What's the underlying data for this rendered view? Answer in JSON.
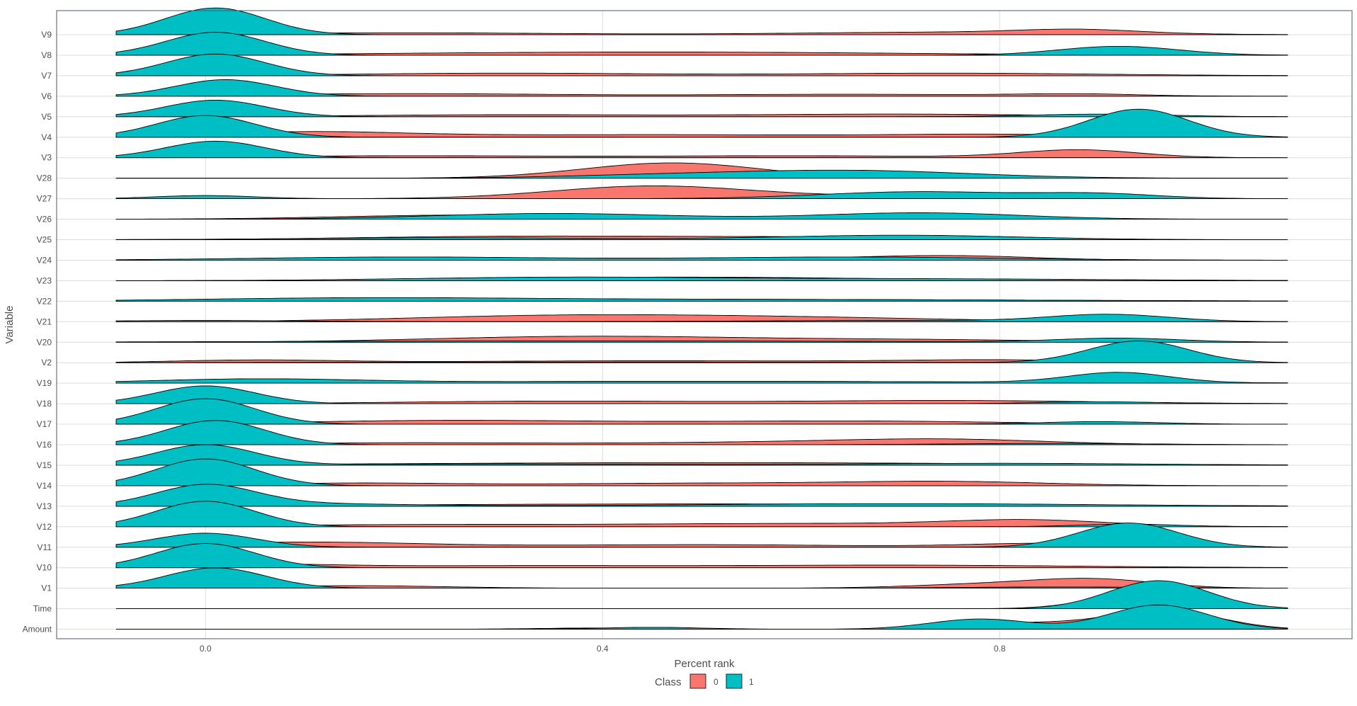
{
  "chart_data": {
    "type": "ridgeline",
    "xlabel": "Percent rank",
    "ylabel": "Variable",
    "xlim": [
      -0.15,
      1.155
    ],
    "x_ticks": [
      0.0,
      0.4,
      0.8
    ],
    "x_tick_labels": [
      "0.0",
      "0.4",
      "0.8"
    ],
    "grid": true,
    "legend": {
      "title": "Class",
      "position": "bottom",
      "items": [
        {
          "label": "0",
          "color": "#F8766D"
        },
        {
          "label": "1",
          "color": "#00BFC4"
        }
      ]
    },
    "colors": {
      "class0": "#F8766D",
      "class1": "#00BFC4",
      "panel_border": "#4a5a6a",
      "grid": "#dcdcdc"
    },
    "variables": [
      "Amount",
      "Time",
      "V1",
      "V10",
      "V11",
      "V12",
      "V13",
      "V14",
      "V15",
      "V16",
      "V17",
      "V18",
      "V19",
      "V2",
      "V20",
      "V21",
      "V22",
      "V23",
      "V24",
      "V25",
      "V26",
      "V27",
      "V28",
      "V3",
      "V4",
      "V5",
      "V6",
      "V7",
      "V8",
      "V9"
    ],
    "series": [
      {
        "variable": "Amount",
        "range": [
          -0.09,
          1.09
        ],
        "class0": [
          [
            0.4,
            0.1,
            0.06
          ],
          [
            0.83,
            0.5,
            0.07
          ],
          [
            0.96,
            1.3,
            0.05
          ],
          [
            1.02,
            0.25,
            0.04
          ]
        ],
        "class1": [
          [
            0.45,
            0.15,
            0.05
          ],
          [
            0.78,
            0.8,
            0.05
          ],
          [
            0.96,
            1.9,
            0.05
          ]
        ]
      },
      {
        "variable": "Time",
        "range": [
          -0.09,
          1.09
        ],
        "class0": [
          [
            0.94,
            1.1,
            0.05
          ],
          [
            0.99,
            0.4,
            0.04
          ]
        ],
        "class1": [
          [
            0.96,
            2.2,
            0.05
          ]
        ]
      },
      {
        "variable": "V1",
        "range": [
          -0.09,
          1.09
        ],
        "class0": [
          [
            0.15,
            0.2,
            0.09
          ],
          [
            0.8,
            0.35,
            0.08
          ],
          [
            0.9,
            0.6,
            0.06
          ]
        ],
        "class1": [
          [
            0.01,
            1.6,
            0.05
          ],
          [
            0.86,
            0.1,
            0.1
          ]
        ]
      },
      {
        "variable": "V10",
        "range": [
          -0.09,
          1.09
        ],
        "class0": [
          [
            0.05,
            0.25,
            0.08
          ],
          [
            0.3,
            0.15,
            0.15
          ],
          [
            0.7,
            0.2,
            0.18
          ]
        ],
        "class1": [
          [
            0.0,
            1.9,
            0.05
          ]
        ]
      },
      {
        "variable": "V11",
        "range": [
          -0.09,
          1.09
        ],
        "class0": [
          [
            0.1,
            0.4,
            0.12
          ],
          [
            0.5,
            0.2,
            0.15
          ],
          [
            0.85,
            0.3,
            0.08
          ]
        ],
        "class1": [
          [
            0.0,
            1.1,
            0.05
          ],
          [
            0.93,
            1.9,
            0.05
          ]
        ]
      },
      {
        "variable": "V12",
        "range": [
          -0.09,
          1.09
        ],
        "class0": [
          [
            0.2,
            0.15,
            0.15
          ],
          [
            0.6,
            0.25,
            0.18
          ],
          [
            0.83,
            0.45,
            0.08
          ]
        ],
        "class1": [
          [
            0.0,
            2.0,
            0.05
          ],
          [
            0.93,
            0.2,
            0.05
          ]
        ]
      },
      {
        "variable": "V13",
        "range": [
          -0.09,
          1.09
        ],
        "class0": [
          [
            0.5,
            0.18,
            0.3
          ]
        ],
        "class1": [
          [
            0.0,
            1.6,
            0.05
          ],
          [
            0.1,
            0.2,
            0.1
          ],
          [
            0.7,
            0.2,
            0.2
          ]
        ]
      },
      {
        "variable": "V14",
        "range": [
          -0.09,
          1.09
        ],
        "class0": [
          [
            0.15,
            0.2,
            0.1
          ],
          [
            0.5,
            0.2,
            0.15
          ],
          [
            0.75,
            0.3,
            0.1
          ]
        ],
        "class1": [
          [
            0.0,
            2.1,
            0.05
          ]
        ]
      },
      {
        "variable": "V15",
        "range": [
          -0.09,
          1.09
        ],
        "class0": [
          [
            0.5,
            0.2,
            0.3
          ]
        ],
        "class1": [
          [
            0.0,
            1.6,
            0.05
          ],
          [
            0.3,
            0.1,
            0.15
          ],
          [
            0.8,
            0.15,
            0.15
          ]
        ]
      },
      {
        "variable": "V16",
        "range": [
          -0.09,
          1.09
        ],
        "class0": [
          [
            0.2,
            0.15,
            0.12
          ],
          [
            0.58,
            0.2,
            0.15
          ],
          [
            0.75,
            0.35,
            0.1
          ]
        ],
        "class1": [
          [
            0.01,
            1.9,
            0.05
          ],
          [
            0.85,
            0.1,
            0.1
          ]
        ]
      },
      {
        "variable": "V17",
        "range": [
          -0.09,
          1.09
        ],
        "class0": [
          [
            0.25,
            0.3,
            0.15
          ],
          [
            0.65,
            0.25,
            0.15
          ]
        ],
        "class1": [
          [
            0.0,
            2.0,
            0.05
          ],
          [
            0.9,
            0.2,
            0.06
          ]
        ]
      },
      {
        "variable": "V18",
        "range": [
          -0.09,
          1.09
        ],
        "class0": [
          [
            0.35,
            0.2,
            0.15
          ],
          [
            0.75,
            0.25,
            0.15
          ]
        ],
        "class1": [
          [
            0.0,
            1.4,
            0.05
          ],
          [
            0.9,
            0.15,
            0.06
          ]
        ]
      },
      {
        "variable": "V19",
        "range": [
          -0.09,
          1.09
        ],
        "class0": [
          [
            0.5,
            0.15,
            0.3
          ]
        ],
        "class1": [
          [
            0.05,
            0.3,
            0.1
          ],
          [
            0.5,
            0.15,
            0.3
          ],
          [
            0.92,
            0.8,
            0.05
          ]
        ]
      },
      {
        "variable": "V2",
        "range": [
          -0.09,
          1.09
        ],
        "class0": [
          [
            0.05,
            0.2,
            0.08
          ],
          [
            0.45,
            0.15,
            0.2
          ],
          [
            0.8,
            0.2,
            0.1
          ]
        ],
        "class1": [
          [
            0.94,
            1.7,
            0.05
          ],
          [
            0.4,
            0.05,
            0.3
          ]
        ]
      },
      {
        "variable": "V20",
        "range": [
          -0.09,
          1.09
        ],
        "class0": [
          [
            0.38,
            0.45,
            0.15
          ],
          [
            0.7,
            0.2,
            0.15
          ]
        ],
        "class1": [
          [
            0.4,
            0.1,
            0.3
          ],
          [
            0.92,
            0.3,
            0.06
          ]
        ]
      },
      {
        "variable": "V21",
        "range": [
          -0.09,
          1.09
        ],
        "class0": [
          [
            0.35,
            0.45,
            0.15
          ],
          [
            0.6,
            0.3,
            0.15
          ]
        ],
        "class1": [
          [
            0.0,
            0.1,
            0.1
          ],
          [
            0.7,
            0.1,
            0.15
          ],
          [
            0.91,
            0.55,
            0.06
          ]
        ]
      },
      {
        "variable": "V22",
        "range": [
          -0.09,
          1.09
        ],
        "class0": [
          [
            0.5,
            0.15,
            0.3
          ]
        ],
        "class1": [
          [
            0.15,
            0.2,
            0.15
          ],
          [
            0.5,
            0.15,
            0.3
          ]
        ]
      },
      {
        "variable": "V23",
        "range": [
          -0.09,
          1.09
        ],
        "class0": [
          [
            0.4,
            0.2,
            0.15
          ],
          [
            0.6,
            0.15,
            0.15
          ]
        ],
        "class1": [
          [
            0.35,
            0.25,
            0.15
          ],
          [
            0.7,
            0.15,
            0.2
          ]
        ]
      },
      {
        "variable": "V24",
        "range": [
          -0.09,
          1.09
        ],
        "class0": [
          [
            0.5,
            0.15,
            0.2
          ],
          [
            0.75,
            0.3,
            0.08
          ]
        ],
        "class1": [
          [
            0.2,
            0.25,
            0.15
          ],
          [
            0.65,
            0.25,
            0.15
          ]
        ]
      },
      {
        "variable": "V25",
        "range": [
          -0.09,
          1.09
        ],
        "class0": [
          [
            0.3,
            0.25,
            0.15
          ],
          [
            0.6,
            0.2,
            0.15
          ]
        ],
        "class1": [
          [
            0.25,
            0.15,
            0.15
          ],
          [
            0.7,
            0.35,
            0.12
          ]
        ]
      },
      {
        "variable": "V26",
        "range": [
          -0.09,
          1.09
        ],
        "class0": [
          [
            0.25,
            0.3,
            0.12
          ],
          [
            0.55,
            0.2,
            0.15
          ]
        ],
        "class1": [
          [
            0.35,
            0.45,
            0.12
          ],
          [
            0.72,
            0.5,
            0.1
          ]
        ]
      },
      {
        "variable": "V27",
        "range": [
          -0.09,
          1.09
        ],
        "class0": [
          [
            0.45,
            1.0,
            0.1
          ],
          [
            0.7,
            0.2,
            0.1
          ]
        ],
        "class1": [
          [
            0.0,
            0.25,
            0.05
          ],
          [
            0.72,
            0.55,
            0.1
          ],
          [
            0.9,
            0.35,
            0.06
          ]
        ]
      },
      {
        "variable": "V28",
        "range": [
          -0.09,
          1.09
        ],
        "class0": [
          [
            0.47,
            1.2,
            0.09
          ]
        ],
        "class1": [
          [
            0.65,
            0.6,
            0.12
          ],
          [
            0.45,
            0.2,
            0.1
          ]
        ]
      },
      {
        "variable": "V3",
        "range": [
          -0.09,
          1.09
        ],
        "class0": [
          [
            0.2,
            0.15,
            0.15
          ],
          [
            0.6,
            0.15,
            0.15
          ],
          [
            0.88,
            0.6,
            0.06
          ]
        ],
        "class1": [
          [
            0.01,
            1.3,
            0.05
          ]
        ]
      },
      {
        "variable": "V4",
        "range": [
          -0.09,
          1.09
        ],
        "class0": [
          [
            0.1,
            0.4,
            0.1
          ],
          [
            0.45,
            0.2,
            0.2
          ],
          [
            0.8,
            0.2,
            0.1
          ]
        ],
        "class1": [
          [
            0.0,
            1.7,
            0.05
          ],
          [
            0.94,
            2.2,
            0.05
          ]
        ]
      },
      {
        "variable": "V5",
        "range": [
          -0.09,
          1.09
        ],
        "class0": [
          [
            0.3,
            0.15,
            0.15
          ],
          [
            0.7,
            0.2,
            0.15
          ]
        ],
        "class1": [
          [
            0.01,
            1.3,
            0.05
          ],
          [
            0.9,
            0.2,
            0.07
          ]
        ]
      },
      {
        "variable": "V6",
        "range": [
          -0.09,
          1.09
        ],
        "class0": [
          [
            0.2,
            0.2,
            0.15
          ],
          [
            0.65,
            0.15,
            0.15
          ],
          [
            0.88,
            0.15,
            0.06
          ]
        ],
        "class1": [
          [
            0.02,
            1.3,
            0.05
          ]
        ]
      },
      {
        "variable": "V7",
        "range": [
          -0.09,
          1.09
        ],
        "class0": [
          [
            0.3,
            0.2,
            0.15
          ],
          [
            0.75,
            0.2,
            0.15
          ]
        ],
        "class1": [
          [
            0.01,
            1.7,
            0.05
          ]
        ]
      },
      {
        "variable": "V8",
        "range": [
          -0.09,
          1.09
        ],
        "class0": [
          [
            0.45,
            0.25,
            0.25
          ]
        ],
        "class1": [
          [
            0.01,
            1.8,
            0.05
          ],
          [
            0.92,
            0.7,
            0.06
          ]
        ]
      },
      {
        "variable": "V9",
        "range": [
          -0.09,
          1.09
        ],
        "class0": [
          [
            0.2,
            0.15,
            0.15
          ],
          [
            0.75,
            0.2,
            0.15
          ],
          [
            0.88,
            0.3,
            0.06
          ]
        ],
        "class1": [
          [
            0.01,
            2.1,
            0.05
          ]
        ]
      }
    ]
  }
}
